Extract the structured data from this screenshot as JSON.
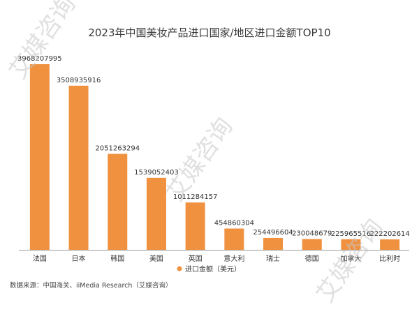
{
  "chart_data": {
    "type": "bar",
    "title": "2023年中国美妆产品进口国家/地区进口金额TOP10",
    "categories": [
      "法国",
      "日本",
      "韩国",
      "美国",
      "英国",
      "意大利",
      "瑞士",
      "德国",
      "加拿大",
      "比利时"
    ],
    "series": [
      {
        "name": "进口金额（美元）",
        "values": [
          3968207995,
          3508935916,
          2051263294,
          1539052403,
          1011284157,
          454860304,
          254496604,
          230048679,
          225965516,
          222202614
        ]
      }
    ],
    "value_labels": [
      "3968207995",
      "3508935916",
      "2051263294",
      "1539052403",
      "1011284157",
      "454860304",
      "254496604",
      "230048679",
      "225965516",
      "222202614"
    ],
    "ylim": [
      0,
      3968207995
    ],
    "grid": false,
    "legend_position": "bottom-center",
    "colors": {
      "bar": "#f0913f",
      "axis": "#999999"
    }
  },
  "source": "数据来源：中国海关、iiMedia Research（艾媒咨询）",
  "watermark": "艾媒咨询"
}
